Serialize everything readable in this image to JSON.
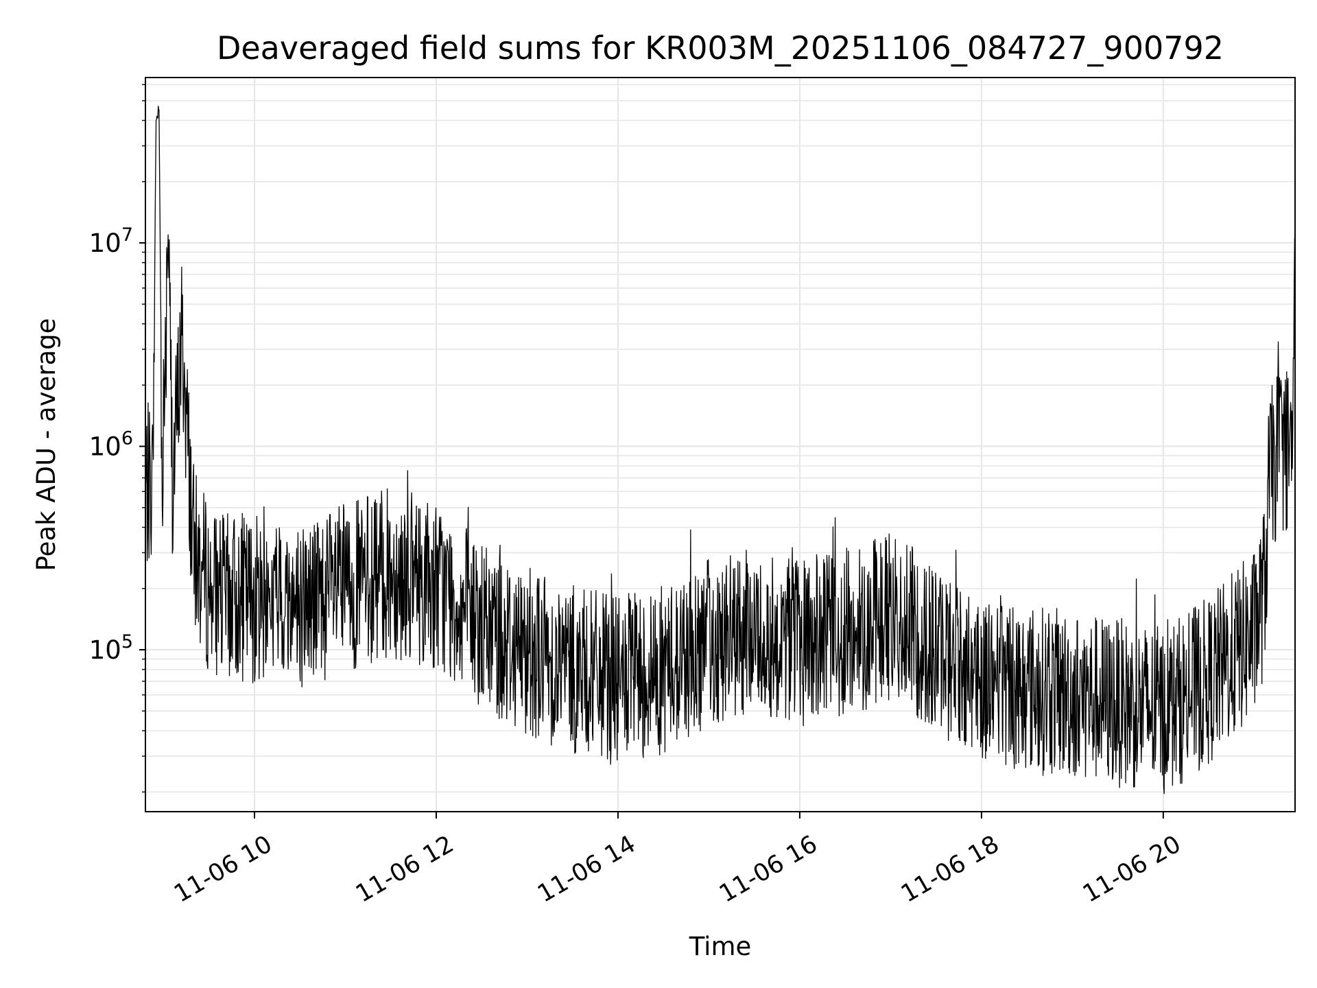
{
  "chart_data": {
    "type": "line",
    "title": "Deaveraged field sums for KR003M_20251106_084727_900792",
    "xlabel": "Time",
    "ylabel": "Peak ADU - average",
    "x_axis": {
      "kind": "datetime",
      "range": [
        "2025-11-06 08:48",
        "2025-11-06 21:27"
      ],
      "ticks": [
        {
          "value": "2025-11-06 10:00",
          "label": "11-06 10"
        },
        {
          "value": "2025-11-06 12:00",
          "label": "11-06 12"
        },
        {
          "value": "2025-11-06 14:00",
          "label": "11-06 14"
        },
        {
          "value": "2025-11-06 16:00",
          "label": "11-06 16"
        },
        {
          "value": "2025-11-06 18:00",
          "label": "11-06 18"
        },
        {
          "value": "2025-11-06 20:00",
          "label": "11-06 20"
        }
      ],
      "tick_label_rotation_deg": 30
    },
    "y_axis": {
      "scale": "log",
      "range": [
        16000,
        65000000
      ],
      "ticks": [
        {
          "value": 100000,
          "base": "10",
          "exp": "5"
        },
        {
          "value": 1000000,
          "base": "10",
          "exp": "6"
        },
        {
          "value": 10000000,
          "base": "10",
          "exp": "7"
        }
      ]
    },
    "grid": "major and minor",
    "legend": "none",
    "line_color": "#000000",
    "series": [
      {
        "x": [
          "2025-11-06 08:48",
          "2025-11-06 08:53",
          "2025-11-06 08:55",
          "2025-11-06 08:57",
          "2025-11-06 08:59",
          "2025-11-06 09:03",
          "2025-11-06 09:06",
          "2025-11-06 09:12",
          "2025-11-06 09:20",
          "2025-11-06 09:30",
          "2025-11-06 09:40",
          "2025-11-06 10:00",
          "2025-11-06 10:30",
          "2025-11-06 11:00",
          "2025-11-06 11:30",
          "2025-11-06 12:00",
          "2025-11-06 12:30",
          "2025-11-06 13:00",
          "2025-11-06 13:30",
          "2025-11-06 14:00",
          "2025-11-06 14:30",
          "2025-11-06 15:00",
          "2025-11-06 15:30",
          "2025-11-06 16:00",
          "2025-11-06 16:30",
          "2025-11-06 17:00",
          "2025-11-06 17:30",
          "2025-11-06 18:00",
          "2025-11-06 18:30",
          "2025-11-06 19:00",
          "2025-11-06 19:30",
          "2025-11-06 20:00",
          "2025-11-06 20:30",
          "2025-11-06 21:00",
          "2025-11-06 21:07",
          "2025-11-06 21:10",
          "2025-11-06 21:15",
          "2025-11-06 21:20",
          "2025-11-06 21:25",
          "2025-11-06 21:27"
        ],
        "y": [
          600000,
          700000,
          40000000,
          45000000,
          700000,
          11000000,
          650000,
          3500000,
          300000,
          200000,
          180000,
          180000,
          170000,
          200000,
          240000,
          210000,
          130000,
          100000,
          80000,
          70000,
          80000,
          110000,
          120000,
          110000,
          120000,
          150000,
          100000,
          75000,
          65000,
          60000,
          55000,
          50000,
          70000,
          120000,
          200000,
          700000,
          900000,
          1000000,
          950000,
          6000000
        ]
      }
    ]
  }
}
